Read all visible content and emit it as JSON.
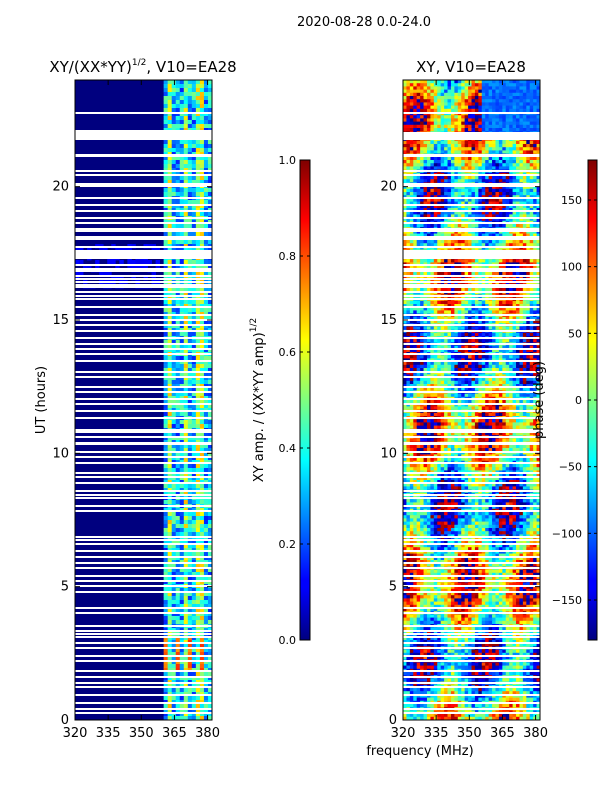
{
  "suptitle": "2020-08-28 0.0-24.0",
  "chart_data": [
    {
      "type": "heatmap",
      "title_main": "XY/(XX*YY)",
      "title_sup": "1/2",
      "title_tail": ", V10=EA28",
      "xlabel": "",
      "ylabel": "UT (hours)",
      "xlim": [
        320,
        382
      ],
      "ylim": [
        0,
        24
      ],
      "xticks": [
        "320",
        "335",
        "350",
        "365",
        "380"
      ],
      "xtick_values": [
        320,
        335,
        350,
        365,
        380
      ],
      "yticks": [
        "0",
        "5",
        "10",
        "15",
        "20"
      ],
      "ytick_values": [
        0,
        5,
        10,
        15,
        20
      ],
      "colormap": "jet",
      "colorbar": {
        "label_main": "XY amp. / (XX*YY amp)",
        "label_sup": "1/2",
        "range": [
          0.0,
          1.0
        ],
        "ticks": [
          "0.0",
          "0.2",
          "0.4",
          "0.6",
          "0.8",
          "1.0"
        ],
        "tick_values": [
          0.0,
          0.2,
          0.4,
          0.6,
          0.8,
          1.0
        ]
      }
    },
    {
      "type": "heatmap",
      "title": "XY, V10=EA28",
      "xlabel": "frequency (MHz)",
      "ylabel": "",
      "xlim": [
        320,
        382
      ],
      "ylim": [
        0,
        24
      ],
      "xticks": [
        "320",
        "335",
        "350",
        "365",
        "380"
      ],
      "xtick_values": [
        320,
        335,
        350,
        365,
        380
      ],
      "yticks": [
        "0",
        "5",
        "10",
        "15",
        "20"
      ],
      "ytick_values": [
        0,
        5,
        10,
        15,
        20
      ],
      "colormap": "jet",
      "colorbar": {
        "label": "phase (deg)",
        "range": [
          -180,
          180
        ],
        "ticks": [
          "−150",
          "−100",
          "−50",
          "0",
          "50",
          "100",
          "150"
        ],
        "tick_values": [
          -150,
          -100,
          -50,
          0,
          50,
          100,
          150
        ]
      }
    }
  ],
  "colors": {
    "jet_dark_blue": "#00007f",
    "blank_rows": "#ffffff"
  }
}
